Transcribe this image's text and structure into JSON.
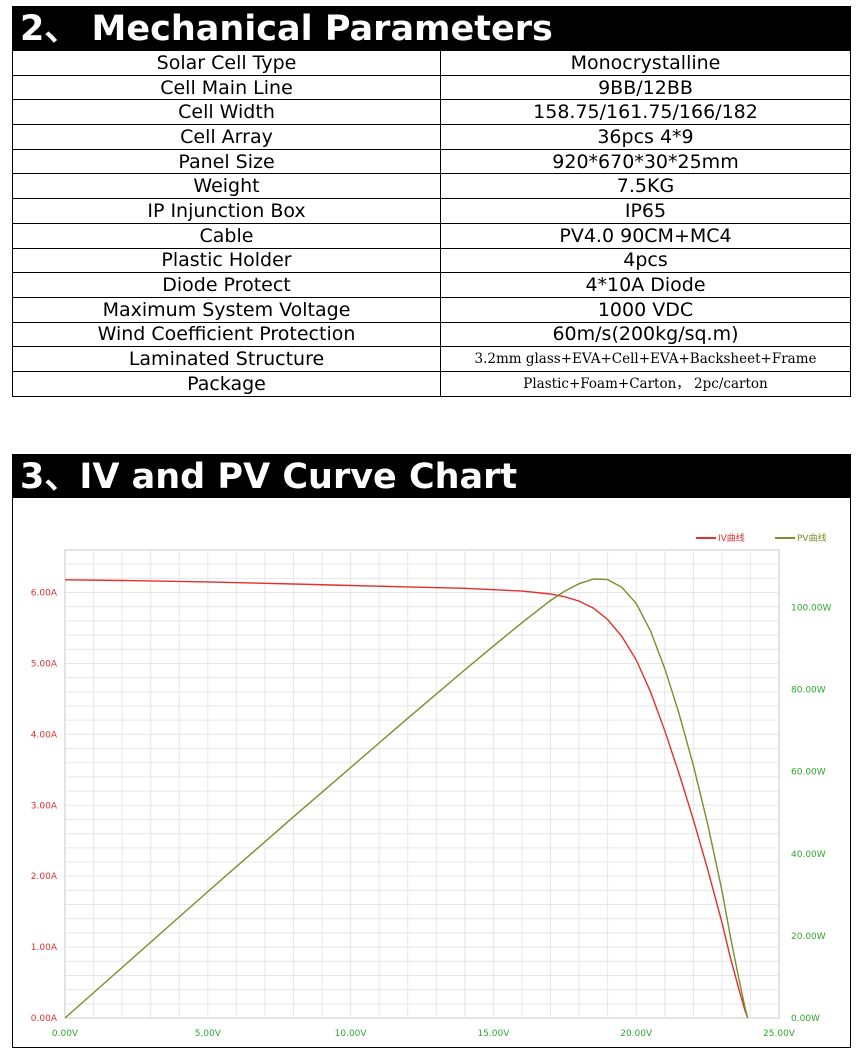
{
  "sections": {
    "mechanical_title": "2、 Mechanical Parameters",
    "chart_title": "3、IV and PV Curve Chart"
  },
  "parameters": [
    {
      "label": "Solar Cell Type",
      "value": "Monocrystalline"
    },
    {
      "label": "Cell Main Line",
      "value": "9BB/12BB"
    },
    {
      "label": "Cell Width",
      "value": "158.75/161.75/166/182"
    },
    {
      "label": "Cell Array",
      "value": "36pcs 4*9"
    },
    {
      "label": "Panel Size",
      "value": "920*670*30*25mm"
    },
    {
      "label": "Weight",
      "value": "7.5KG"
    },
    {
      "label": "IP Injunction Box",
      "value": "IP65"
    },
    {
      "label": "Cable",
      "value": "PV4.0 90CM+MC4"
    },
    {
      "label": "Plastic Holder",
      "value": "4pcs"
    },
    {
      "label": "Diode Protect",
      "value": "4*10A Diode"
    },
    {
      "label": "Maximum System Voltage",
      "value": "1000 VDC"
    },
    {
      "label": "Wind Coefficient Protection",
      "value": "60m/s(200kg/sq.m)"
    },
    {
      "label": "Laminated Structure",
      "value": "3.2mm glass+EVA+Cell+EVA+Backsheet+Frame"
    },
    {
      "label": "Package",
      "value": "Plastic+Foam+Carton， 2pc/carton"
    }
  ],
  "chart_data": {
    "type": "line",
    "title": "",
    "xlabel": "",
    "ylabel": "",
    "xlim": [
      0,
      25
    ],
    "ylim_left": [
      0,
      6.6
    ],
    "ylim_right": [
      0,
      114
    ],
    "x_ticks": [
      "0.00V",
      "5.00V",
      "10.00V",
      "15.00V",
      "20.00V",
      "25.00V"
    ],
    "y_left_ticks": [
      "0.00A",
      "1.00A",
      "2.00A",
      "3.00A",
      "4.00A",
      "5.00A",
      "6.00A"
    ],
    "y_right_ticks": [
      "0.00W",
      "20.00W",
      "40.00W",
      "60.00W",
      "80.00W",
      "100.00W"
    ],
    "grid": true,
    "legend_position": "top-right",
    "colors": {
      "iv": "#e03030",
      "pv": "#7a8f2a",
      "axis_text_left": "#e03030",
      "axis_text_green": "#2fa82f",
      "grid": "#e6e6e6"
    },
    "series": [
      {
        "name": "IV曲线",
        "axis": "left",
        "x": [
          0,
          2,
          5,
          8,
          10,
          12,
          14,
          15,
          16,
          17,
          17.5,
          18,
          18.5,
          19,
          19.5,
          20,
          20.5,
          21,
          21.5,
          22,
          22.5,
          23,
          23.3,
          23.6,
          23.8,
          23.9
        ],
        "values": [
          6.18,
          6.17,
          6.15,
          6.12,
          6.1,
          6.08,
          6.06,
          6.04,
          6.02,
          5.98,
          5.94,
          5.88,
          5.78,
          5.62,
          5.38,
          5.05,
          4.6,
          4.05,
          3.45,
          2.8,
          2.1,
          1.35,
          0.85,
          0.4,
          0.12,
          0.0
        ]
      },
      {
        "name": "PV曲线",
        "axis": "right",
        "x": [
          0,
          2,
          5,
          8,
          10,
          12,
          14,
          15,
          16,
          17,
          17.5,
          18,
          18.5,
          19,
          19.5,
          20,
          20.5,
          21,
          21.5,
          22,
          22.5,
          23,
          23.3,
          23.6,
          23.8,
          23.9
        ],
        "values": [
          0,
          12.3,
          30.8,
          49.0,
          61.0,
          73.0,
          84.8,
          90.6,
          96.3,
          101.7,
          104.0,
          105.8,
          106.9,
          106.8,
          104.9,
          101.0,
          94.3,
          85.1,
          74.2,
          61.6,
          47.3,
          31.1,
          19.8,
          9.4,
          2.9,
          0.0
        ]
      }
    ]
  }
}
